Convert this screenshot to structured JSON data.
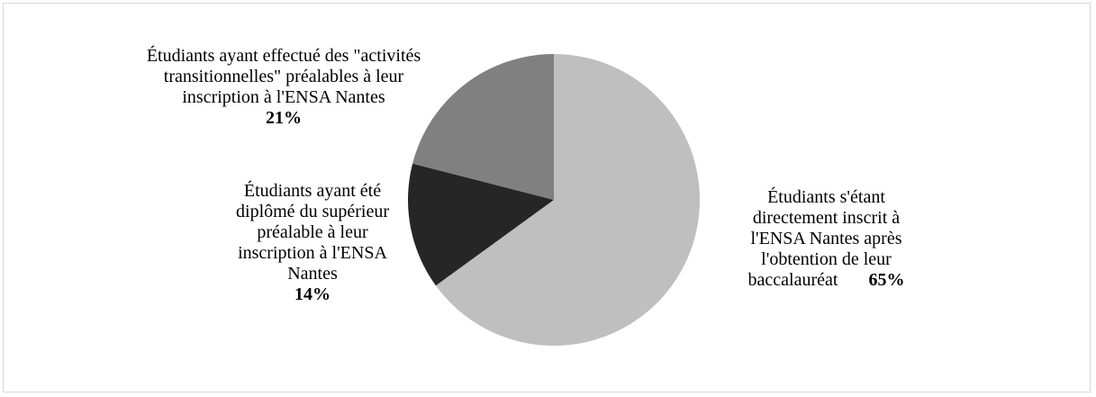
{
  "chart_data": {
    "type": "pie",
    "title": "",
    "slices": [
      {
        "label_lines": [
          "Étudiants s'étant",
          "directement inscrit à",
          "l'ENSA Nantes après",
          "l'obtention de leur",
          "baccalauréat"
        ],
        "value": 65,
        "value_label": "65%",
        "color": "#bfbfbf"
      },
      {
        "label_lines": [
          "Étudiants ayant été",
          "diplômé du supérieur",
          "préalable à leur",
          "inscription à l'ENSA",
          "Nantes"
        ],
        "value": 14,
        "value_label": "14%",
        "color": "#262626"
      },
      {
        "label_lines": [
          "Étudiants ayant effectué des \"activités",
          "transitionnelles\" préalables à leur",
          "inscription à l'ENSA Nantes"
        ],
        "value": 21,
        "value_label": "21%",
        "color": "#808080"
      }
    ],
    "start_angle_deg": 0,
    "direction": "clockwise",
    "legend": "none"
  }
}
